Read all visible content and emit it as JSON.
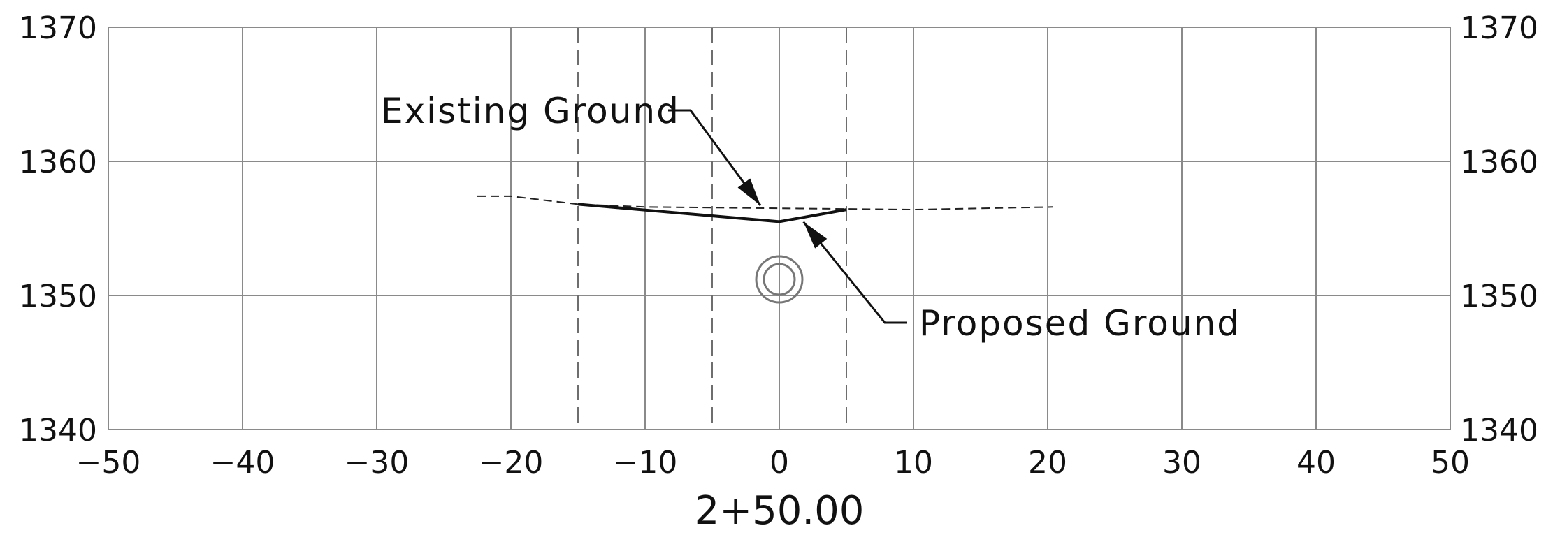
{
  "chart_data": {
    "type": "line",
    "title": "",
    "xlabel": "",
    "ylabel": "",
    "station_label": "2+50.00",
    "xlim": [
      -50,
      50
    ],
    "ylim": [
      1340,
      1370
    ],
    "x_ticks": [
      -50,
      -40,
      -30,
      -20,
      -10,
      0,
      10,
      20,
      30,
      40,
      50
    ],
    "x_tick_labels": [
      "−50",
      "−40",
      "−30",
      "−20",
      "−10",
      "0",
      "10",
      "20",
      "30",
      "40",
      "50"
    ],
    "y_ticks": [
      1340,
      1350,
      1360,
      1370
    ],
    "y_tick_labels": [
      "1340",
      "1350",
      "1360",
      "1370"
    ],
    "grid": true,
    "reference_offsets": [
      -15,
      -5,
      5
    ],
    "series": [
      {
        "name": "Existing Ground",
        "style": "dashed",
        "points": [
          [
            -22.5,
            1357.4
          ],
          [
            -20,
            1357.4
          ],
          [
            -15,
            1356.8
          ],
          [
            -10,
            1356.6
          ],
          [
            0,
            1356.5
          ],
          [
            10,
            1356.4
          ],
          [
            20.4,
            1356.6
          ]
        ]
      },
      {
        "name": "Proposed Ground",
        "style": "solid",
        "points": [
          [
            -15,
            1356.8
          ],
          [
            0,
            1355.5
          ],
          [
            5,
            1356.4
          ]
        ]
      }
    ],
    "annotations": [
      {
        "text": "Existing Ground",
        "series": "Existing Ground"
      },
      {
        "text": "Proposed Ground",
        "series": "Proposed Ground"
      }
    ],
    "pipe": {
      "x": 0,
      "y": 1351.2
    }
  }
}
